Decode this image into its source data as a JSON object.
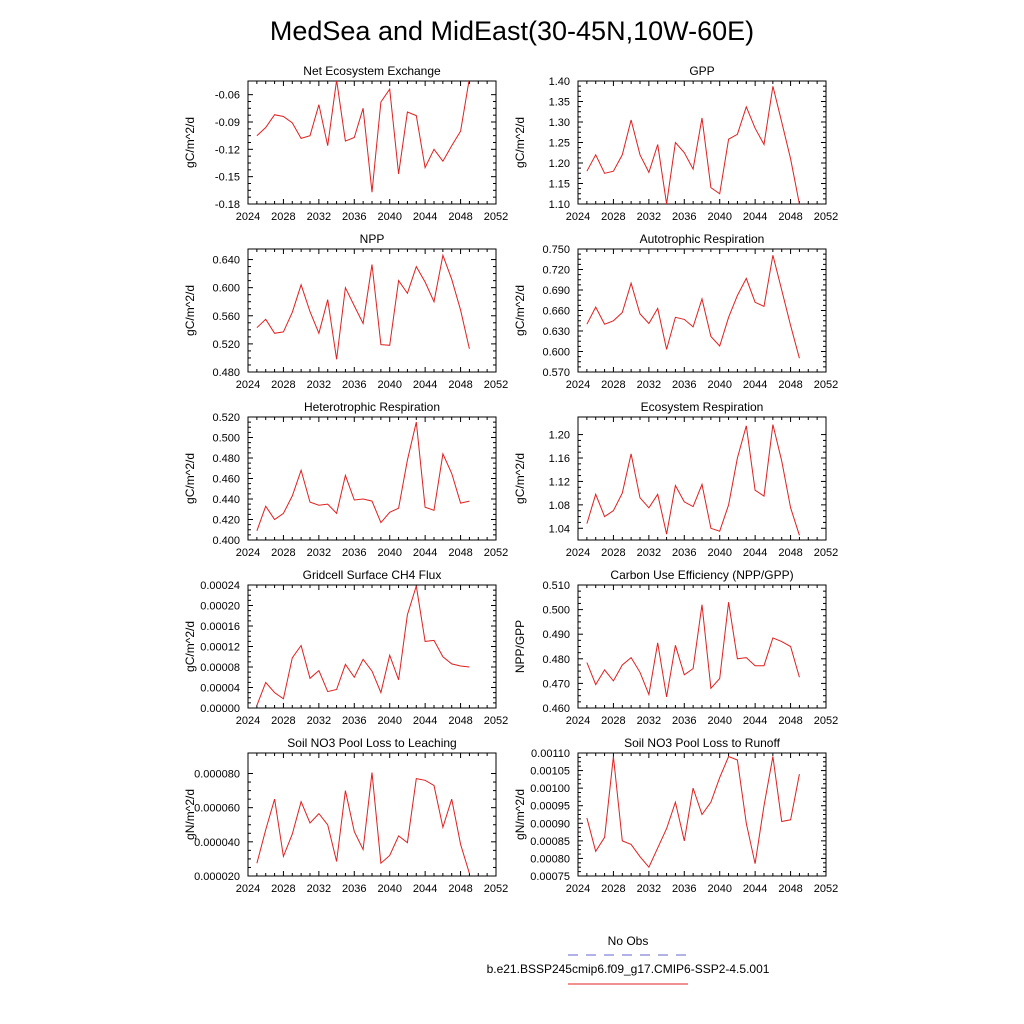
{
  "figure": {
    "title": "MedSea and MidEast(30-45N,10W-60E)"
  },
  "legend": {
    "obs_label": "No Obs",
    "obs_color": "#6666cc",
    "model_label": "b.e21.BSSP245cmip6.f09_g17.CMIP6-SSP2-4.5.001",
    "model_color": "#e02020"
  },
  "chart_data": [
    {
      "type": "line",
      "title": "Net Ecosystem Exchange",
      "ylabel": "gC/m^2/d",
      "xlim": [
        2024,
        2052
      ],
      "xticks": [
        "2024",
        "2028",
        "2032",
        "2036",
        "2040",
        "2044",
        "2048",
        "2052"
      ],
      "ylim": [
        -0.18,
        -0.045
      ],
      "yticks": [
        "-0.18",
        "-0.15",
        "-0.12",
        "-0.09",
        "-0.06"
      ],
      "ytick_values": [
        -0.18,
        -0.15,
        -0.12,
        -0.09,
        -0.06
      ],
      "x": [
        2025,
        2026,
        2027,
        2028,
        2029,
        2030,
        2031,
        2032,
        2033,
        2034,
        2035,
        2036,
        2037,
        2038,
        2039,
        2040,
        2041,
        2042,
        2043,
        2044,
        2045,
        2046,
        2047,
        2048,
        2049
      ],
      "series": [
        {
          "values": [
            -0.105,
            -0.096,
            -0.082,
            -0.084,
            -0.091,
            -0.108,
            -0.105,
            -0.071,
            -0.116,
            -0.044,
            -0.111,
            -0.107,
            -0.075,
            -0.167,
            -0.068,
            -0.054,
            -0.147,
            -0.079,
            -0.083,
            -0.14,
            -0.12,
            -0.133,
            -0.116,
            -0.1,
            -0.042
          ]
        }
      ]
    },
    {
      "type": "line",
      "title": "GPP",
      "ylabel": "gC/m^2/d",
      "xlim": [
        2024,
        2052
      ],
      "xticks": [
        "2024",
        "2028",
        "2032",
        "2036",
        "2040",
        "2044",
        "2048",
        "2052"
      ],
      "ylim": [
        1.1,
        1.4
      ],
      "yticks": [
        "1.10",
        "1.15",
        "1.20",
        "1.25",
        "1.30",
        "1.35",
        "1.40"
      ],
      "ytick_values": [
        1.1,
        1.15,
        1.2,
        1.25,
        1.3,
        1.35,
        1.4
      ],
      "x": [
        2025,
        2026,
        2027,
        2028,
        2029,
        2030,
        2031,
        2032,
        2033,
        2034,
        2035,
        2036,
        2037,
        2038,
        2039,
        2040,
        2041,
        2042,
        2043,
        2044,
        2045,
        2046,
        2047,
        2048,
        2049
      ],
      "series": [
        {
          "values": [
            1.18,
            1.22,
            1.175,
            1.18,
            1.22,
            1.305,
            1.22,
            1.177,
            1.245,
            1.1,
            1.25,
            1.225,
            1.185,
            1.31,
            1.14,
            1.125,
            1.258,
            1.27,
            1.337,
            1.285,
            1.245,
            1.387,
            1.3,
            1.21,
            1.1
          ]
        }
      ]
    },
    {
      "type": "line",
      "title": "NPP",
      "ylabel": "gC/m^2/d",
      "xlim": [
        2024,
        2052
      ],
      "xticks": [
        "2024",
        "2028",
        "2032",
        "2036",
        "2040",
        "2044",
        "2048",
        "2052"
      ],
      "ylim": [
        0.48,
        0.655
      ],
      "yticks": [
        "0.480",
        "0.520",
        "0.560",
        "0.600",
        "0.640"
      ],
      "ytick_values": [
        0.48,
        0.52,
        0.56,
        0.6,
        0.64
      ],
      "x": [
        2025,
        2026,
        2027,
        2028,
        2029,
        2030,
        2031,
        2032,
        2033,
        2034,
        2035,
        2036,
        2037,
        2038,
        2039,
        2040,
        2041,
        2042,
        2043,
        2044,
        2045,
        2046,
        2047,
        2048,
        2049
      ],
      "series": [
        {
          "values": [
            0.543,
            0.555,
            0.535,
            0.537,
            0.565,
            0.604,
            0.566,
            0.535,
            0.583,
            0.498,
            0.6,
            0.574,
            0.549,
            0.633,
            0.519,
            0.518,
            0.61,
            0.592,
            0.63,
            0.608,
            0.58,
            0.646,
            0.612,
            0.568,
            0.513
          ]
        }
      ]
    },
    {
      "type": "line",
      "title": "Autotrophic Respiration",
      "ylabel": "gC/m^2/d",
      "xlim": [
        2024,
        2052
      ],
      "xticks": [
        "2024",
        "2028",
        "2032",
        "2036",
        "2040",
        "2044",
        "2048",
        "2052"
      ],
      "ylim": [
        0.57,
        0.75
      ],
      "yticks": [
        "0.570",
        "0.600",
        "0.630",
        "0.660",
        "0.690",
        "0.720",
        "0.750"
      ],
      "ytick_values": [
        0.57,
        0.6,
        0.63,
        0.66,
        0.69,
        0.72,
        0.75
      ],
      "x": [
        2025,
        2026,
        2027,
        2028,
        2029,
        2030,
        2031,
        2032,
        2033,
        2034,
        2035,
        2036,
        2037,
        2038,
        2039,
        2040,
        2041,
        2042,
        2043,
        2044,
        2045,
        2046,
        2047,
        2048,
        2049
      ],
      "series": [
        {
          "values": [
            0.64,
            0.665,
            0.64,
            0.645,
            0.657,
            0.7,
            0.655,
            0.641,
            0.663,
            0.603,
            0.65,
            0.647,
            0.636,
            0.677,
            0.622,
            0.608,
            0.65,
            0.682,
            0.707,
            0.672,
            0.666,
            0.741,
            0.69,
            0.638,
            0.59
          ]
        }
      ]
    },
    {
      "type": "line",
      "title": "Heterotrophic Respiration",
      "ylabel": "gC/m^2/d",
      "xlim": [
        2024,
        2052
      ],
      "xticks": [
        "2024",
        "2028",
        "2032",
        "2036",
        "2040",
        "2044",
        "2048",
        "2052"
      ],
      "ylim": [
        0.4,
        0.52
      ],
      "yticks": [
        "0.400",
        "0.420",
        "0.440",
        "0.460",
        "0.480",
        "0.500",
        "0.520"
      ],
      "ytick_values": [
        0.4,
        0.42,
        0.44,
        0.46,
        0.48,
        0.5,
        0.52
      ],
      "x": [
        2025,
        2026,
        2027,
        2028,
        2029,
        2030,
        2031,
        2032,
        2033,
        2034,
        2035,
        2036,
        2037,
        2038,
        2039,
        2040,
        2041,
        2042,
        2043,
        2044,
        2045,
        2046,
        2047,
        2048,
        2049
      ],
      "series": [
        {
          "values": [
            0.409,
            0.433,
            0.42,
            0.426,
            0.443,
            0.468,
            0.437,
            0.434,
            0.435,
            0.426,
            0.463,
            0.439,
            0.44,
            0.438,
            0.417,
            0.427,
            0.431,
            0.478,
            0.515,
            0.432,
            0.429,
            0.484,
            0.465,
            0.436,
            0.438
          ]
        }
      ]
    },
    {
      "type": "line",
      "title": "Ecosystem Respiration",
      "ylabel": "gC/m^2/d",
      "xlim": [
        2024,
        2052
      ],
      "xticks": [
        "2024",
        "2028",
        "2032",
        "2036",
        "2040",
        "2044",
        "2048",
        "2052"
      ],
      "ylim": [
        1.02,
        1.23
      ],
      "yticks": [
        "1.04",
        "1.08",
        "1.12",
        "1.16",
        "1.20"
      ],
      "ytick_values": [
        1.04,
        1.08,
        1.12,
        1.16,
        1.2
      ],
      "x": [
        2025,
        2026,
        2027,
        2028,
        2029,
        2030,
        2031,
        2032,
        2033,
        2034,
        2035,
        2036,
        2037,
        2038,
        2039,
        2040,
        2041,
        2042,
        2043,
        2044,
        2045,
        2046,
        2047,
        2048,
        2049
      ],
      "series": [
        {
          "values": [
            1.048,
            1.098,
            1.06,
            1.07,
            1.1,
            1.167,
            1.092,
            1.075,
            1.098,
            1.03,
            1.113,
            1.085,
            1.077,
            1.115,
            1.04,
            1.035,
            1.08,
            1.16,
            1.215,
            1.105,
            1.095,
            1.217,
            1.155,
            1.075,
            1.028
          ]
        }
      ]
    },
    {
      "type": "line",
      "title": "Gridcell Surface CH4 Flux",
      "ylabel": "gC/m^2/d",
      "xlim": [
        2024,
        2052
      ],
      "xticks": [
        "2024",
        "2028",
        "2032",
        "2036",
        "2040",
        "2044",
        "2048",
        "2052"
      ],
      "ylim": [
        0.0,
        0.00024
      ],
      "yticks": [
        "0.00000",
        "0.00004",
        "0.00008",
        "0.00012",
        "0.00016",
        "0.00020",
        "0.00024"
      ],
      "ytick_values": [
        0.0,
        4e-05,
        8e-05,
        0.00012,
        0.00016,
        0.0002,
        0.00024
      ],
      "x": [
        2025,
        2026,
        2027,
        2028,
        2029,
        2030,
        2031,
        2032,
        2033,
        2034,
        2035,
        2036,
        2037,
        2038,
        2039,
        2040,
        2041,
        2042,
        2043,
        2044,
        2045,
        2046,
        2047,
        2048,
        2049
      ],
      "series": [
        {
          "values": [
            5e-06,
            5e-05,
            3e-05,
            1.8e-05,
            9.8e-05,
            0.000122,
            5.8e-05,
            7.3e-05,
            3.2e-05,
            3.6e-05,
            8.5e-05,
            6e-05,
            9.5e-05,
            7.2e-05,
            3e-05,
            0.000103,
            5.5e-05,
            0.000182,
            0.000238,
            0.00013,
            0.000132,
            0.0001,
            8.6e-05,
            8.2e-05,
            8e-05
          ]
        }
      ]
    },
    {
      "type": "line",
      "title": "Carbon Use Efficiency (NPP/GPP)",
      "ylabel": "NPP/GPP",
      "xlim": [
        2024,
        2052
      ],
      "xticks": [
        "2024",
        "2028",
        "2032",
        "2036",
        "2040",
        "2044",
        "2048",
        "2052"
      ],
      "ylim": [
        0.46,
        0.51
      ],
      "yticks": [
        "0.460",
        "0.470",
        "0.480",
        "0.490",
        "0.500",
        "0.510"
      ],
      "ytick_values": [
        0.46,
        0.47,
        0.48,
        0.49,
        0.5,
        0.51
      ],
      "x": [
        2025,
        2026,
        2027,
        2028,
        2029,
        2030,
        2031,
        2032,
        2033,
        2034,
        2035,
        2036,
        2037,
        2038,
        2039,
        2040,
        2041,
        2042,
        2043,
        2044,
        2045,
        2046,
        2047,
        2048,
        2049
      ],
      "series": [
        {
          "values": [
            0.4785,
            0.4695,
            0.4755,
            0.471,
            0.4775,
            0.4805,
            0.4745,
            0.4655,
            0.4865,
            0.4645,
            0.4855,
            0.4735,
            0.476,
            0.502,
            0.468,
            0.472,
            0.503,
            0.48,
            0.4805,
            0.4772,
            0.4772,
            0.4885,
            0.487,
            0.485,
            0.4725
          ]
        }
      ]
    },
    {
      "type": "line",
      "title": "Soil NO3 Pool Loss to Leaching",
      "ylabel": "gN/m^2/d",
      "xlim": [
        2024,
        2052
      ],
      "xticks": [
        "2024",
        "2028",
        "2032",
        "2036",
        "2040",
        "2044",
        "2048",
        "2052"
      ],
      "ylim": [
        2e-05,
        9.2e-05
      ],
      "yticks": [
        "0.000020",
        "0.000040",
        "0.000060",
        "0.000080"
      ],
      "ytick_values": [
        2e-05,
        4e-05,
        6e-05,
        8e-05
      ],
      "x": [
        2025,
        2026,
        2027,
        2028,
        2029,
        2030,
        2031,
        2032,
        2033,
        2034,
        2035,
        2036,
        2037,
        2038,
        2039,
        2040,
        2041,
        2042,
        2043,
        2044,
        2045,
        2046,
        2047,
        2048,
        2049
      ],
      "series": [
        {
          "values": [
            2.75e-05,
            4.7e-05,
            6.5e-05,
            3.15e-05,
            4.45e-05,
            6.35e-05,
            5.1e-05,
            5.65e-05,
            5e-05,
            2.85e-05,
            7e-05,
            4.6e-05,
            3.55e-05,
            8.05e-05,
            2.75e-05,
            3.2e-05,
            4.35e-05,
            3.95e-05,
            7.7e-05,
            7.6e-05,
            7.3e-05,
            4.85e-05,
            6.5e-05,
            3.85e-05,
            2.15e-05
          ]
        }
      ]
    },
    {
      "type": "line",
      "title": "Soil NO3 Pool Loss to Runoff",
      "ylabel": "gN/m^2/d",
      "xlim": [
        2024,
        2052
      ],
      "xticks": [
        "2024",
        "2028",
        "2032",
        "2036",
        "2040",
        "2044",
        "2048",
        "2052"
      ],
      "ylim": [
        0.00075,
        0.0011
      ],
      "yticks": [
        "0.00075",
        "0.00080",
        "0.00085",
        "0.00090",
        "0.00095",
        "0.00100",
        "0.00105",
        "0.00110"
      ],
      "ytick_values": [
        0.00075,
        0.0008,
        0.00085,
        0.0009,
        0.00095,
        0.001,
        0.00105,
        0.0011
      ],
      "x": [
        2025,
        2026,
        2027,
        2028,
        2029,
        2030,
        2031,
        2032,
        2033,
        2034,
        2035,
        2036,
        2037,
        2038,
        2039,
        2040,
        2041,
        2042,
        2043,
        2044,
        2045,
        2046,
        2047,
        2048,
        2049
      ],
      "series": [
        {
          "values": [
            0.000915,
            0.00082,
            0.00086,
            0.00109,
            0.00085,
            0.00084,
            0.000805,
            0.000775,
            0.00083,
            0.000885,
            0.00096,
            0.00085,
            0.001,
            0.000925,
            0.00096,
            0.00103,
            0.00109,
            0.00108,
            0.0009,
            0.000785,
            0.00095,
            0.00109,
            0.000905,
            0.00091,
            0.00104
          ]
        }
      ]
    }
  ]
}
